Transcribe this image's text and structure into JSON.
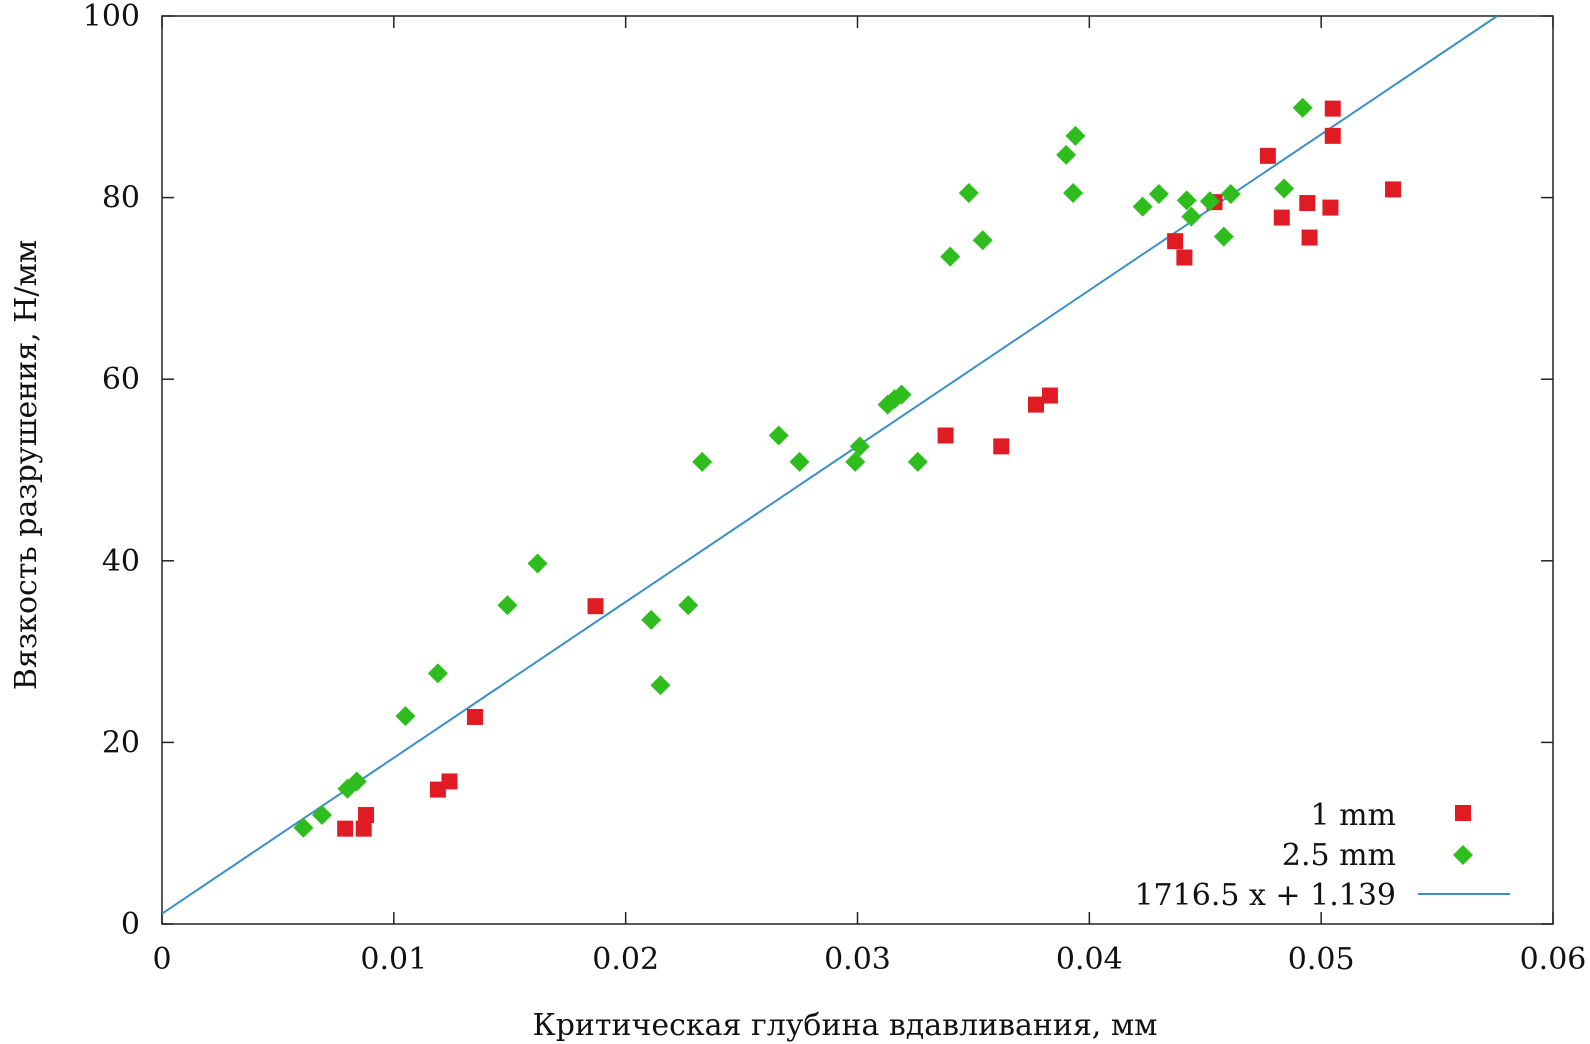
{
  "chart_data": {
    "type": "scatter",
    "xlabel": "Критическая глубина вдавливания, мм",
    "ylabel": "Вязкость разрушения, Н/мм",
    "xlim": [
      0,
      0.06
    ],
    "ylim": [
      0,
      100
    ],
    "xticks": [
      0,
      0.01,
      0.02,
      0.03,
      0.04,
      0.05,
      0.06
    ],
    "xtick_labels": [
      "0",
      "0.01",
      "0.02",
      "0.03",
      "0.04",
      "0.05",
      "0.06"
    ],
    "yticks": [
      0,
      20,
      40,
      60,
      80,
      100
    ],
    "ytick_labels": [
      "0",
      "20",
      "40",
      "60",
      "80",
      "100"
    ],
    "grid": false,
    "legend_position": "bottom-right",
    "series": [
      {
        "name": "1 mm",
        "marker": "square",
        "color": "#e01b24",
        "points": [
          [
            0.0079,
            10.5
          ],
          [
            0.0087,
            10.5
          ],
          [
            0.0088,
            12.0
          ],
          [
            0.0119,
            14.8
          ],
          [
            0.0124,
            15.7
          ],
          [
            0.0135,
            22.8
          ],
          [
            0.0187,
            35.0
          ],
          [
            0.0338,
            53.8
          ],
          [
            0.0362,
            52.6
          ],
          [
            0.0377,
            57.2
          ],
          [
            0.0383,
            58.2
          ],
          [
            0.0437,
            75.2
          ],
          [
            0.0441,
            73.4
          ],
          [
            0.0454,
            79.5
          ],
          [
            0.0477,
            84.6
          ],
          [
            0.0483,
            77.8
          ],
          [
            0.0494,
            79.4
          ],
          [
            0.0495,
            75.6
          ],
          [
            0.0504,
            78.9
          ],
          [
            0.0505,
            89.8
          ],
          [
            0.0505,
            86.8
          ],
          [
            0.0531,
            80.9
          ]
        ]
      },
      {
        "name": "2.5 mm",
        "marker": "diamond",
        "color": "#2ebd1d",
        "points": [
          [
            0.0061,
            10.6
          ],
          [
            0.0069,
            12.0
          ],
          [
            0.008,
            14.9
          ],
          [
            0.0084,
            15.7
          ],
          [
            0.0105,
            22.9
          ],
          [
            0.0119,
            27.6
          ],
          [
            0.0149,
            35.1
          ],
          [
            0.0162,
            39.7
          ],
          [
            0.0211,
            33.5
          ],
          [
            0.0215,
            26.3
          ],
          [
            0.0227,
            35.1
          ],
          [
            0.0233,
            50.9
          ],
          [
            0.0266,
            53.8
          ],
          [
            0.0275,
            50.9
          ],
          [
            0.0299,
            50.9
          ],
          [
            0.0301,
            52.6
          ],
          [
            0.0313,
            57.2
          ],
          [
            0.0316,
            57.8
          ],
          [
            0.0319,
            58.3
          ],
          [
            0.0326,
            50.9
          ],
          [
            0.034,
            73.5
          ],
          [
            0.0348,
            80.5
          ],
          [
            0.0354,
            75.3
          ],
          [
            0.039,
            84.7
          ],
          [
            0.0393,
            80.5
          ],
          [
            0.0394,
            86.8
          ],
          [
            0.0423,
            79.0
          ],
          [
            0.043,
            80.4
          ],
          [
            0.0442,
            79.7
          ],
          [
            0.0444,
            77.9
          ],
          [
            0.0452,
            79.6
          ],
          [
            0.0458,
            75.7
          ],
          [
            0.0461,
            80.4
          ],
          [
            0.0484,
            81.0
          ],
          [
            0.0492,
            89.9
          ]
        ]
      },
      {
        "name": "1716.5 x + 1.139",
        "marker": "line",
        "color": "#3c8fc8",
        "slope": 1716.5,
        "intercept": 1.139
      }
    ]
  }
}
